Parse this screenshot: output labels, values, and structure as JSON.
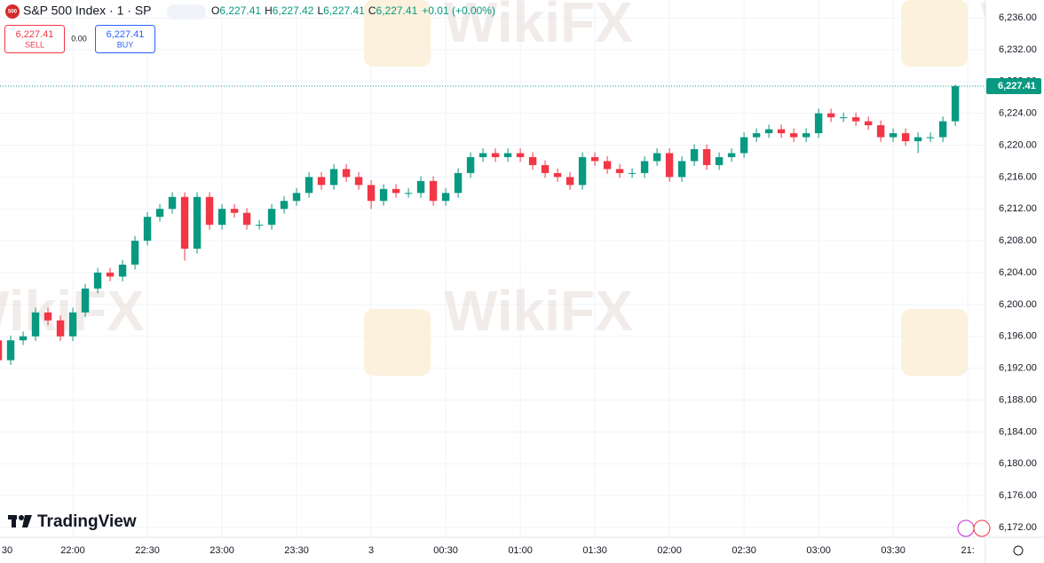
{
  "header": {
    "icon": "500",
    "symbol": "S&P 500 Index · 1 · SP",
    "ohlc": [
      {
        "label": "O",
        "value": "6,227.41"
      },
      {
        "label": "H",
        "value": "6,227.42"
      },
      {
        "label": "L",
        "value": "6,227.41"
      },
      {
        "label": "C",
        "value": "6,227.41"
      }
    ],
    "change": "+0.01 (+0.00%)",
    "sell_price": "6,227.41",
    "sell": "SELL",
    "spread": "0.00",
    "buy_price": "6,227.41",
    "buy": "BUY",
    "logo": "TradingView",
    "watermark": "WikiFX"
  },
  "chart_data": {
    "type": "candlestick",
    "up_color": "#089981",
    "down_color": "#f23645",
    "grid": true,
    "x": [
      0,
      5,
      10,
      15,
      20,
      25,
      30,
      35,
      40,
      45,
      50,
      55,
      60,
      65,
      70,
      75,
      80,
      85,
      90,
      95,
      100,
      105,
      110,
      115,
      120,
      125,
      130,
      135,
      140,
      145,
      150,
      155,
      160,
      165,
      170,
      175,
      180,
      185,
      190,
      195,
      200,
      205,
      210,
      215,
      220,
      225,
      230,
      235,
      240,
      245,
      250,
      255,
      260,
      265,
      270,
      275,
      280,
      285,
      290,
      295,
      300,
      305,
      310,
      315,
      320,
      325,
      330,
      335,
      340,
      345,
      350,
      355,
      360,
      365,
      370,
      375,
      380,
      385
    ],
    "open": [
      6195.5,
      6193,
      6195.5,
      6196,
      6199,
      6198,
      6196,
      6199,
      6202,
      6204,
      6203.5,
      6205,
      6208,
      6211,
      6212,
      6213.5,
      6207,
      6213.5,
      6210,
      6212,
      6211.5,
      6210,
      6210,
      6212,
      6213,
      6214,
      6216,
      6215,
      6217,
      6216,
      6215,
      6213,
      6214.5,
      6214,
      6214,
      6215.5,
      6213,
      6214,
      6216.5,
      6218.5,
      6219,
      6218.5,
      6219,
      6218.5,
      6217.5,
      6216.5,
      6216,
      6215,
      6218.5,
      6218,
      6217,
      6216.5,
      6216.5,
      6218,
      6219,
      6216,
      6218,
      6219.5,
      6217.5,
      6218.5,
      6219,
      6221,
      6221.5,
      6222,
      6221.5,
      6221,
      6221.5,
      6224,
      6223.5,
      6223.5,
      6223,
      6222.5,
      6221,
      6221.5,
      6220.5,
      6221,
      6221,
      6223
    ],
    "high": [
      6196.5,
      6196.1,
      6196.6,
      6199.6,
      6199.6,
      6198.6,
      6199.6,
      6202.6,
      6204.6,
      6204.6,
      6205.6,
      6208.6,
      6211.6,
      6212.6,
      6214.1,
      6214.1,
      6214.1,
      6214.1,
      6212.6,
      6212.6,
      6212.1,
      6210.6,
      6212.6,
      6213.6,
      6214.6,
      6216.6,
      6216.6,
      6217.6,
      6217.6,
      6216.6,
      6215.6,
      6215.1,
      6215.1,
      6214.6,
      6216.1,
      6216.1,
      6214.6,
      6217.1,
      6219.1,
      6219.6,
      6219.6,
      6219.6,
      6219.6,
      6219.1,
      6218.1,
      6217.1,
      6216.6,
      6219.1,
      6219.1,
      6218.6,
      6217.6,
      6217.1,
      6218.6,
      6219.6,
      6219.6,
      6218.6,
      6220.1,
      6220.1,
      6219.1,
      6219.6,
      6221.6,
      6222.1,
      6222.6,
      6222.6,
      6222.1,
      6222.1,
      6224.6,
      6224.6,
      6224.1,
      6224.1,
      6223.6,
      6223.1,
      6222.1,
      6222.1,
      6221.6,
      6221.6,
      6223.6,
      6227.6
    ],
    "low": [
      6189,
      6192.4,
      6194.9,
      6195.4,
      6197.4,
      6195.4,
      6195.4,
      6198.4,
      6201.4,
      6202.9,
      6202.9,
      6204.4,
      6207.4,
      6210.4,
      6211.4,
      6205.5,
      6206.4,
      6209.4,
      6209.4,
      6210.9,
      6209.4,
      6209.4,
      6209.4,
      6211.4,
      6212.4,
      6213.4,
      6214.4,
      6214.4,
      6215.4,
      6214.4,
      6212,
      6212.4,
      6213.4,
      6213.4,
      6213.4,
      6212.4,
      6212.4,
      6213.4,
      6215.9,
      6217.9,
      6217.9,
      6217.9,
      6217.9,
      6216.9,
      6215.9,
      6215.4,
      6214.4,
      6214.4,
      6217.4,
      6216.4,
      6215.9,
      6215.9,
      6215.9,
      6217.4,
      6215.4,
      6215.4,
      6217.4,
      6216.9,
      6216.9,
      6217.9,
      6218.4,
      6220.4,
      6220.9,
      6220.9,
      6220.4,
      6220.4,
      6220.9,
      6222.9,
      6222.9,
      6222.4,
      6221.9,
      6220.4,
      6220.4,
      6219.9,
      6219,
      6220.4,
      6220.4,
      6222.4
    ],
    "close": [
      6193,
      6195.5,
      6196,
      6199,
      6198,
      6196,
      6199,
      6202,
      6204,
      6203.5,
      6205,
      6208,
      6211,
      6212,
      6213.5,
      6207,
      6213.5,
      6210,
      6212,
      6211.5,
      6210,
      6210,
      6212,
      6213,
      6214,
      6216,
      6215,
      6217,
      6216,
      6215,
      6213,
      6214.5,
      6214,
      6214,
      6215.5,
      6213,
      6214,
      6216.5,
      6218.5,
      6219,
      6218.5,
      6219,
      6218.5,
      6217.5,
      6216.5,
      6216,
      6215,
      6218.5,
      6218,
      6217,
      6216.5,
      6216.5,
      6218,
      6219,
      6216,
      6218,
      6219.5,
      6217.5,
      6218.5,
      6219,
      6221,
      6221.5,
      6222,
      6221.5,
      6221,
      6221.5,
      6224,
      6223.5,
      6223.5,
      6223,
      6222.5,
      6221,
      6221.5,
      6220.5,
      6221,
      6221,
      6223,
      6227.41
    ],
    "xlim": [
      0.7,
      397.1
    ],
    "xticks": [
      {
        "value": 0,
        "label": "30"
      },
      {
        "value": 30,
        "label": "22:00"
      },
      {
        "value": 60,
        "label": "22:30"
      },
      {
        "value": 90,
        "label": "23:00"
      },
      {
        "value": 120,
        "label": "23:30"
      },
      {
        "value": 150,
        "label": "3"
      },
      {
        "value": 180,
        "label": "00:30"
      },
      {
        "value": 210,
        "label": "01:00"
      },
      {
        "value": 240,
        "label": "01:30"
      },
      {
        "value": 270,
        "label": "02:00"
      },
      {
        "value": 300,
        "label": "02:30"
      },
      {
        "value": 330,
        "label": "03:00"
      },
      {
        "value": 360,
        "label": "03:30"
      },
      {
        "value": 390,
        "label": "21:"
      }
    ],
    "ylim": [
      6170.77,
      6238.23
    ],
    "yticks": [
      {
        "value": 6172,
        "label": "6,172.00"
      },
      {
        "value": 6176,
        "label": "6,176.00"
      },
      {
        "value": 6180,
        "label": "6,180.00"
      },
      {
        "value": 6184,
        "label": "6,184.00"
      },
      {
        "value": 6188,
        "label": "6,188.00"
      },
      {
        "value": 6192,
        "label": "6,192.00"
      },
      {
        "value": 6196,
        "label": "6,196.00"
      },
      {
        "value": 6200,
        "label": "6,200.00"
      },
      {
        "value": 6204,
        "label": "6,204.00"
      },
      {
        "value": 6208,
        "label": "6,208.00"
      },
      {
        "value": 6212,
        "label": "6,212.00"
      },
      {
        "value": 6216,
        "label": "6,216.00"
      },
      {
        "value": 6220,
        "label": "6,220.00"
      },
      {
        "value": 6224,
        "label": "6,224.00"
      },
      {
        "value": 6228,
        "label": "6,228.00"
      },
      {
        "value": 6232,
        "label": "6,232.00"
      },
      {
        "value": 6236,
        "label": "6,236.00"
      }
    ],
    "last_price": {
      "value": 6227.41,
      "label": "6,227.41"
    }
  }
}
